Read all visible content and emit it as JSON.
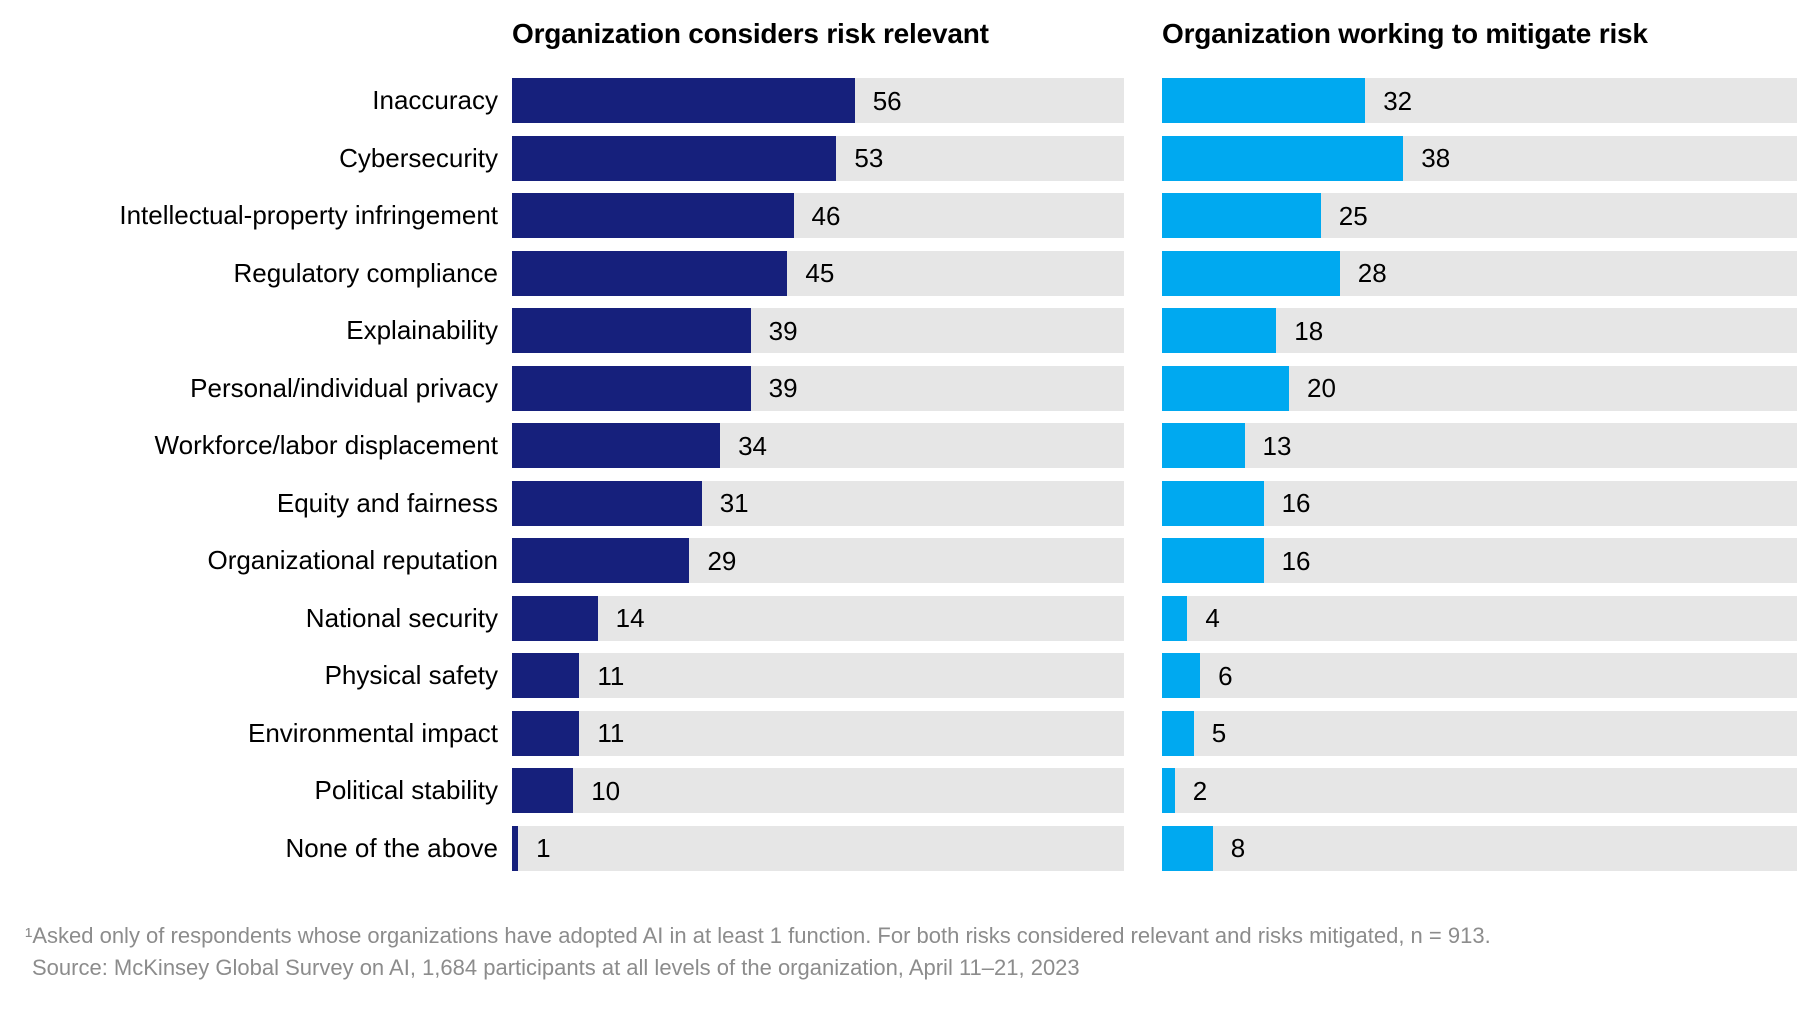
{
  "chart_data": {
    "type": "bar",
    "orientation": "horizontal",
    "xlim": [
      0,
      100
    ],
    "grid": false,
    "legend_position": "column-headers-above-panels",
    "categories": [
      "Inaccuracy",
      "Cybersecurity",
      "Intellectual-property infringement",
      "Regulatory compliance",
      "Explainability",
      "Personal/individual privacy",
      "Workforce/labor displacement",
      "Equity and fairness",
      "Organizational reputation",
      "National security",
      "Physical safety",
      "Environmental impact",
      "Political stability",
      "None of the above"
    ],
    "series": [
      {
        "name": "Organization considers risk relevant",
        "color": "#16207C",
        "values": [
          56,
          53,
          46,
          45,
          39,
          39,
          34,
          31,
          29,
          14,
          11,
          11,
          10,
          1
        ]
      },
      {
        "name": "Organization working to mitigate risk",
        "color": "#00A9F0",
        "values": [
          32,
          38,
          25,
          28,
          18,
          20,
          13,
          16,
          16,
          4,
          6,
          5,
          2,
          8
        ]
      }
    ],
    "track_color": "#E6E6E6",
    "value_label_color": "#000000"
  },
  "footnote": {
    "line1": "¹Asked only of respondents whose organizations have adopted AI in at least 1 function. For both risks considered relevant and risks mitigated, n = 913.",
    "line2": "Source: McKinsey Global Survey on AI, 1,684 participants at all levels of the organization, April 11–21, 2023"
  }
}
